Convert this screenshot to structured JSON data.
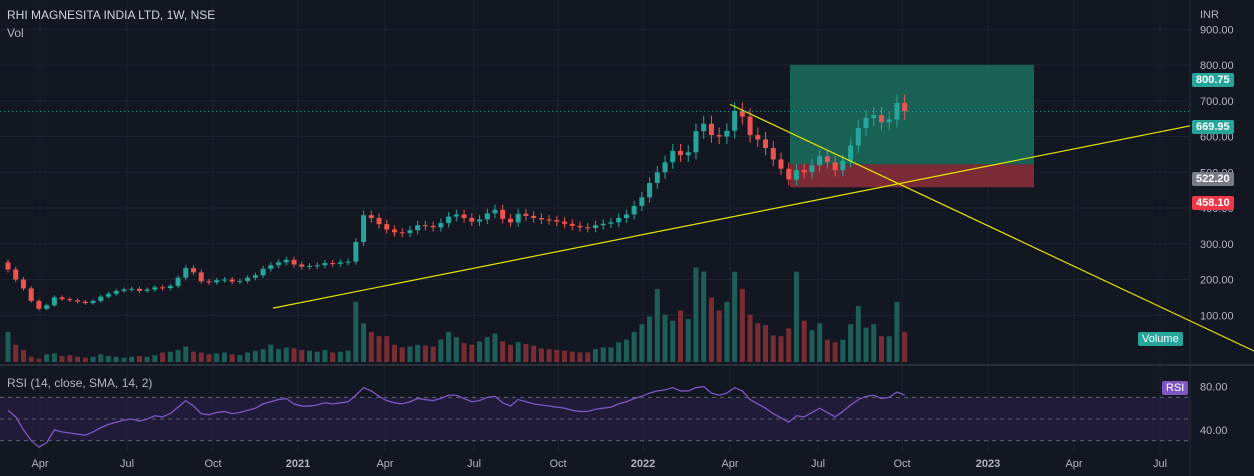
{
  "header": {
    "symbol": "RHI MAGNESITA INDIA LTD, 1W, NSE",
    "vol_label": "Vol",
    "rsi_label": "RSI (14, close, SMA, 14, 2)"
  },
  "tags": {
    "volume": "Volume",
    "rsi": "RSI",
    "target": "800.75",
    "last": "669.95",
    "entry": "522.20",
    "stop": "458.10"
  },
  "colors": {
    "background": "#131722",
    "up": "#26a69a",
    "down": "#ef5350",
    "trendline": "#e5e500",
    "rsi_line": "#7e57c2",
    "profit_zone": "#1b6f5e",
    "loss_zone": "#8e2f3a"
  },
  "chart_data": [
    {
      "type": "candlestick",
      "y_axis_unit": "INR",
      "y_ticks": [
        "900.00",
        "800.00",
        "700.00",
        "600.00",
        "500.00",
        "400.00",
        "300.00",
        "200.00",
        "100.00"
      ],
      "x_ticks": [
        "Apr",
        "Jul",
        "Oct",
        "2021",
        "Apr",
        "Jul",
        "Oct",
        "2022",
        "Apr",
        "Jul",
        "Oct",
        "2023",
        "Apr",
        "Jul"
      ],
      "x_range": [
        "2020-02",
        "2023-08"
      ],
      "ylim": [
        0,
        980
      ],
      "series": [
        {
          "name": "price",
          "close": [
            228,
            200,
            175,
            140,
            118,
            128,
            150,
            145,
            142,
            138,
            134,
            140,
            152,
            160,
            168,
            172,
            174,
            168,
            172,
            178,
            176,
            182,
            205,
            232,
            220,
            195,
            192,
            198,
            200,
            194,
            196,
            205,
            212,
            230,
            240,
            248,
            255,
            242,
            236,
            238,
            240,
            246,
            244,
            248,
            250,
            305,
            380,
            372,
            355,
            340,
            332,
            330,
            338,
            352,
            350,
            346,
            358,
            376,
            382,
            372,
            362,
            368,
            385,
            395,
            370,
            360,
            384,
            378,
            372,
            368,
            366,
            362,
            356,
            350,
            346,
            344,
            352,
            356,
            360,
            372,
            382,
            406,
            430,
            470,
            500,
            528,
            560,
            548,
            556,
            615,
            636,
            604,
            600,
            616,
            672,
            656,
            604,
            592,
            568,
            536,
            510,
            480,
            506,
            500,
            520,
            545,
            528,
            506,
            532,
            575,
            624,
            652,
            660,
            640,
            648,
            694,
            670
          ]
        },
        {
          "name": "Vol",
          "values": [
            70,
            40,
            28,
            12,
            8,
            18,
            20,
            14,
            16,
            12,
            10,
            12,
            18,
            14,
            12,
            10,
            12,
            14,
            12,
            16,
            22,
            24,
            28,
            36,
            24,
            22,
            18,
            20,
            22,
            18,
            16,
            22,
            26,
            30,
            40,
            30,
            34,
            32,
            28,
            26,
            24,
            28,
            22,
            24,
            26,
            140,
            90,
            70,
            60,
            60,
            40,
            34,
            36,
            40,
            38,
            36,
            52,
            70,
            58,
            44,
            40,
            48,
            58,
            66,
            48,
            40,
            46,
            42,
            38,
            32,
            30,
            28,
            26,
            24,
            22,
            22,
            30,
            34,
            34,
            46,
            52,
            70,
            88,
            106,
            170,
            110,
            96,
            120,
            100,
            220,
            210,
            150,
            120,
            140,
            210,
            170,
            110,
            90,
            86,
            62,
            60,
            78,
            210,
            96,
            74,
            90,
            52,
            46,
            52,
            88,
            130,
            80,
            88,
            60,
            60,
            140,
            70
          ]
        }
      ]
    },
    {
      "type": "line",
      "title": "RSI (14, close, SMA, 14, 2)",
      "y_ticks": [
        "80.00",
        "40.00"
      ],
      "ylim": [
        20,
        88
      ],
      "series": [
        {
          "name": "RSI",
          "values": [
            58,
            52,
            40,
            30,
            24,
            28,
            40,
            38,
            37,
            36,
            35,
            38,
            42,
            45,
            47,
            49,
            50,
            48,
            50,
            53,
            52,
            55,
            61,
            67,
            62,
            55,
            54,
            56,
            57,
            55,
            56,
            58,
            60,
            64,
            66,
            68,
            69,
            64,
            62,
            62,
            63,
            65,
            64,
            65,
            66,
            72,
            79,
            76,
            71,
            67,
            65,
            64,
            66,
            69,
            68,
            67,
            69,
            72,
            72,
            69,
            66,
            67,
            70,
            71,
            65,
            62,
            68,
            66,
            64,
            63,
            62,
            61,
            60,
            58,
            57,
            57,
            59,
            60,
            61,
            64,
            66,
            69,
            71,
            74,
            76,
            77,
            79,
            76,
            76,
            79,
            80,
            74,
            72,
            74,
            79,
            76,
            68,
            64,
            60,
            55,
            51,
            47,
            53,
            52,
            56,
            60,
            56,
            52,
            57,
            63,
            68,
            71,
            72,
            69,
            70,
            75,
            72
          ]
        }
      ]
    }
  ]
}
